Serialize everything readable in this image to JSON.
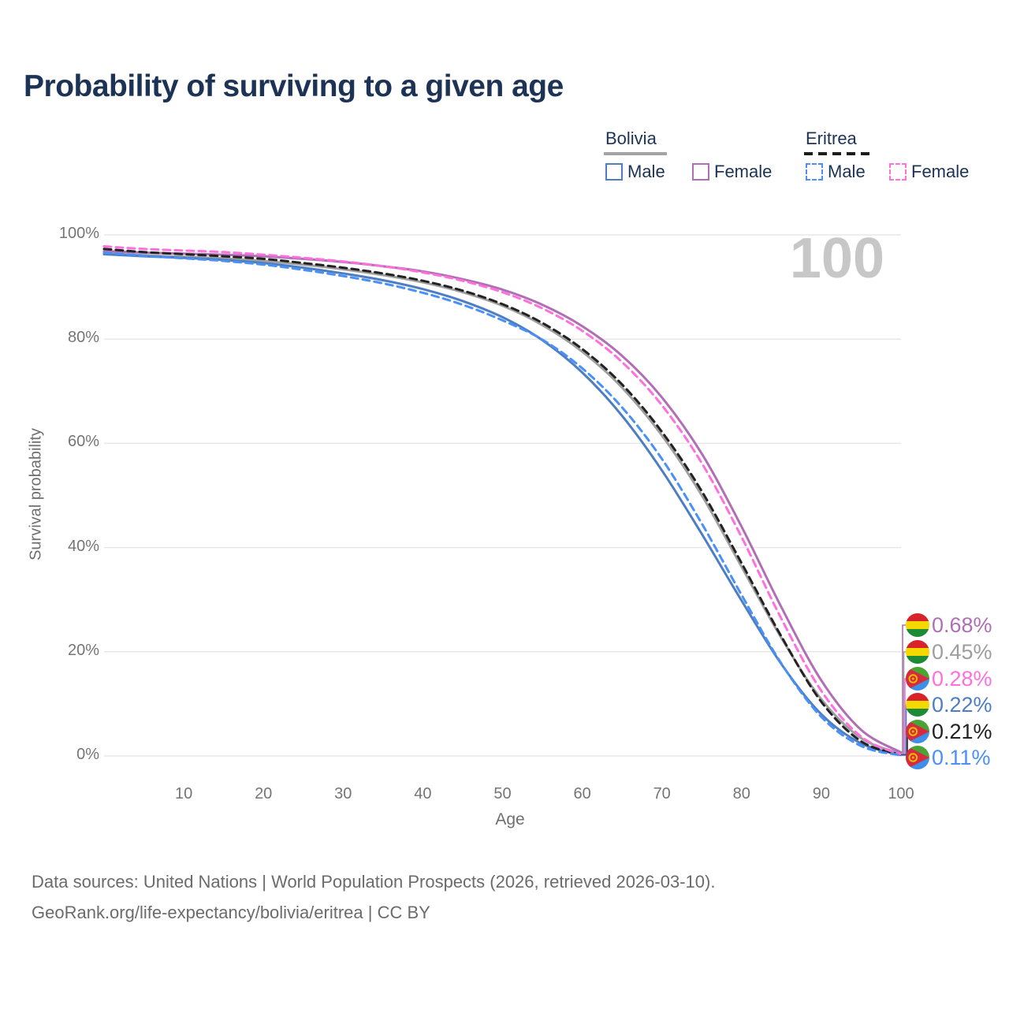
{
  "title": "Probability of surviving to a given age",
  "watermark": "100",
  "legend": {
    "groups": [
      {
        "name": "Bolivia",
        "line_style": "solid",
        "items": [
          {
            "label": "Male",
            "color": "#4d7ec3"
          },
          {
            "label": "Female",
            "color": "#b06fb5"
          }
        ]
      },
      {
        "name": "Eritrea",
        "line_style": "dashed",
        "items": [
          {
            "label": "Male",
            "color": "#4a90f7"
          },
          {
            "label": "Female",
            "color": "#ff70dd"
          }
        ]
      }
    ]
  },
  "axes": {
    "xlabel": "Age",
    "ylabel": "Survival probability",
    "x_ticks": [
      {
        "v": 10,
        "label": "10"
      },
      {
        "v": 20,
        "label": "20"
      },
      {
        "v": 30,
        "label": "30"
      },
      {
        "v": 40,
        "label": "40"
      },
      {
        "v": 50,
        "label": "50"
      },
      {
        "v": 60,
        "label": "60"
      },
      {
        "v": 70,
        "label": "70"
      },
      {
        "v": 80,
        "label": "80"
      },
      {
        "v": 90,
        "label": "90"
      },
      {
        "v": 100,
        "label": "100"
      }
    ],
    "y_ticks": [
      {
        "v": 0,
        "label": "0%"
      },
      {
        "v": 20,
        "label": "20%"
      },
      {
        "v": 40,
        "label": "40%"
      },
      {
        "v": 60,
        "label": "60%"
      },
      {
        "v": 80,
        "label": "80%"
      },
      {
        "v": 100,
        "label": "100%"
      }
    ]
  },
  "chart_data": {
    "type": "line",
    "title": "Probability of surviving to a given age",
    "xlabel": "Age",
    "ylabel": "Survival probability",
    "xlim": [
      0,
      100
    ],
    "ylim": [
      0,
      100
    ],
    "grid": "horizontal",
    "x": [
      0,
      5,
      10,
      15,
      20,
      25,
      30,
      35,
      40,
      45,
      50,
      55,
      60,
      65,
      70,
      75,
      80,
      85,
      90,
      95,
      100
    ],
    "series": [
      {
        "id": "bolivia-both",
        "name": "Bolivia Both sexes",
        "country": "bolivia",
        "sex": "both",
        "style": "solid",
        "color": "#9e9e9e",
        "values": [
          96.5,
          96.1,
          95.8,
          95.5,
          95.0,
          94.3,
          93.4,
          92.3,
          90.9,
          89.0,
          86.4,
          82.7,
          77.6,
          70.7,
          61.5,
          50.0,
          36.3,
          22.6,
          10.9,
          3.4,
          0.45
        ],
        "end_label": "0.45%"
      },
      {
        "id": "bolivia-female",
        "name": "Bolivia Female",
        "country": "bolivia",
        "sex": "female",
        "style": "solid",
        "color": "#b06fb5",
        "values": [
          96.9,
          96.6,
          96.4,
          96.2,
          95.9,
          95.4,
          94.8,
          94.0,
          93.0,
          91.5,
          89.5,
          86.6,
          82.5,
          76.8,
          68.8,
          58.0,
          44.0,
          28.5,
          14.5,
          5.0,
          0.68
        ],
        "end_label": "0.68%"
      },
      {
        "id": "bolivia-male",
        "name": "Bolivia Male",
        "country": "bolivia",
        "sex": "male",
        "style": "solid",
        "color": "#4d7ec3",
        "values": [
          96.3,
          95.9,
          95.6,
          95.2,
          94.6,
          93.7,
          92.6,
          91.3,
          89.6,
          87.3,
          84.2,
          79.8,
          73.6,
          65.3,
          54.8,
          42.6,
          29.8,
          17.6,
          8.0,
          2.4,
          0.22
        ],
        "end_label": "0.22%"
      },
      {
        "id": "eritrea-both",
        "name": "Eritrea Both sexes",
        "country": "eritrea",
        "sex": "both",
        "style": "dashed",
        "color": "#222222",
        "values": [
          97.3,
          96.7,
          96.3,
          95.9,
          95.4,
          94.6,
          93.7,
          92.6,
          91.2,
          89.3,
          86.7,
          83.1,
          78.1,
          71.3,
          62.2,
          50.8,
          37.0,
          22.9,
          10.4,
          2.8,
          0.21
        ],
        "end_label": "0.21%"
      },
      {
        "id": "eritrea-female",
        "name": "Eritrea Female",
        "country": "eritrea",
        "sex": "female",
        "style": "dashed",
        "color": "#ff70dd",
        "values": [
          97.8,
          97.3,
          97.0,
          96.7,
          96.2,
          95.6,
          94.9,
          94.0,
          92.8,
          91.2,
          89.0,
          85.9,
          81.6,
          75.6,
          67.3,
          56.2,
          42.0,
          26.3,
          12.5,
          3.7,
          0.28
        ],
        "end_label": "0.28%"
      },
      {
        "id": "eritrea-male",
        "name": "Eritrea Male",
        "country": "eritrea",
        "sex": "male",
        "style": "dashed",
        "color": "#4a90f7",
        "values": [
          96.6,
          96.0,
          95.5,
          95.0,
          94.3,
          93.3,
          92.1,
          90.7,
          88.9,
          86.6,
          83.6,
          79.9,
          74.4,
          66.9,
          57.0,
          44.6,
          30.9,
          17.7,
          7.5,
          1.9,
          0.11
        ],
        "end_label": "0.11%"
      }
    ],
    "annotation": "100",
    "legend_position": "top-right"
  },
  "flags": {
    "bolivia": {
      "red": "#d8232a",
      "yellow": "#f4d900",
      "green": "#1d8a35"
    },
    "eritrea": {
      "green": "#4aa335",
      "blue": "#3d8fe8",
      "red": "#d62b3d",
      "gold": "#f2b705"
    }
  },
  "footer": {
    "line1": "Data sources: United Nations | World Population Prospects (2026, retrieved 2026-03-10).",
    "line2": "GeoRank.org/life-expectancy/bolivia/eritrea | CC BY"
  }
}
